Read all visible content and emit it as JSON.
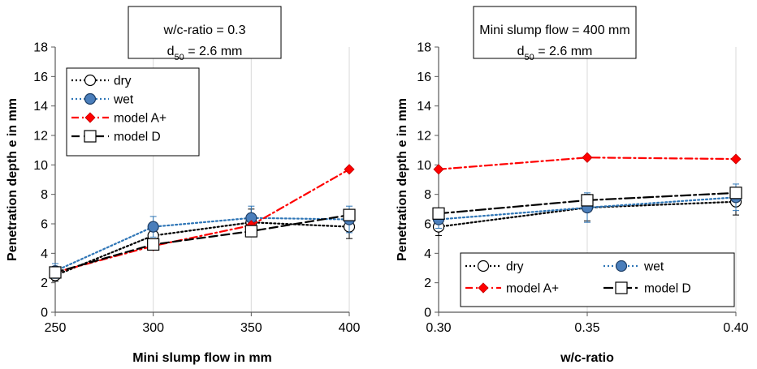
{
  "chart_data": [
    {
      "type": "line",
      "title": "",
      "annotation": {
        "line1": "w/c-ratio = 0.3",
        "line2_prefix": "d",
        "line2_sub": "50",
        "line2_suffix": " = 2.6 mm"
      },
      "xlabel": "Mini slump flow in mm",
      "ylabel": "Penetration depth e in mm",
      "x": [
        250,
        300,
        350,
        400
      ],
      "xticks": [
        "250",
        "300",
        "350",
        "400"
      ],
      "xlim": [
        250,
        400
      ],
      "ylim": [
        0,
        18
      ],
      "yticks": [
        "0",
        "2",
        "4",
        "6",
        "8",
        "10",
        "12",
        "14",
        "16",
        "18"
      ],
      "grid": "vertical",
      "legend_position": "top-left",
      "series": [
        {
          "name": "dry",
          "values": [
            2.5,
            5.2,
            6.1,
            5.8
          ],
          "err": [
            0.4,
            0.7,
            0.9,
            0.8
          ],
          "color": "#000000",
          "marker": "circle-open",
          "dash": "dotted"
        },
        {
          "name": "wet",
          "values": [
            2.8,
            5.8,
            6.4,
            6.3
          ],
          "err": [
            0.5,
            0.7,
            0.8,
            0.9
          ],
          "color": "#2e75b6",
          "marker": "circle-filled",
          "dash": "dotted"
        },
        {
          "name": "model A+",
          "values": [
            2.7,
            4.5,
            5.9,
            9.7
          ],
          "err": null,
          "color": "#ff0000",
          "marker": "diamond",
          "dash": "dashdot"
        },
        {
          "name": "model D",
          "values": [
            2.7,
            4.6,
            5.5,
            6.6
          ],
          "err": null,
          "color": "#000000",
          "marker": "square-open",
          "dash": "dashed"
        }
      ]
    },
    {
      "type": "line",
      "title": "",
      "annotation": {
        "line1": "Mini slump flow = 400 mm",
        "line2_prefix": "d",
        "line2_sub": "50",
        "line2_suffix": " = 2.6 mm"
      },
      "xlabel": "w/c-ratio",
      "ylabel": "Penetration depth e  in mm",
      "x": [
        0.3,
        0.35,
        0.4
      ],
      "xticks": [
        "0.30",
        "0.35",
        "0.40"
      ],
      "xlim": [
        0.3,
        0.4
      ],
      "ylim": [
        0,
        18
      ],
      "yticks": [
        "0",
        "2",
        "4",
        "6",
        "8",
        "10",
        "12",
        "14",
        "16",
        "18"
      ],
      "grid": "vertical",
      "legend_position": "bottom",
      "series": [
        {
          "name": "dry",
          "values": [
            5.8,
            7.1,
            7.5
          ],
          "err": [
            0.6,
            0.9,
            0.9
          ],
          "color": "#000000",
          "marker": "circle-open",
          "dash": "dotted"
        },
        {
          "name": "wet",
          "values": [
            6.3,
            7.1,
            7.8
          ],
          "err": [
            0.6,
            1.0,
            0.9
          ],
          "color": "#2e75b6",
          "marker": "circle-filled",
          "dash": "dotted"
        },
        {
          "name": "model A+",
          "values": [
            9.7,
            10.5,
            10.4
          ],
          "err": null,
          "color": "#ff0000",
          "marker": "diamond",
          "dash": "dashdot"
        },
        {
          "name": "model D",
          "values": [
            6.7,
            7.6,
            8.1
          ],
          "err": null,
          "color": "#000000",
          "marker": "square-open",
          "dash": "dashdotlong"
        }
      ]
    }
  ]
}
